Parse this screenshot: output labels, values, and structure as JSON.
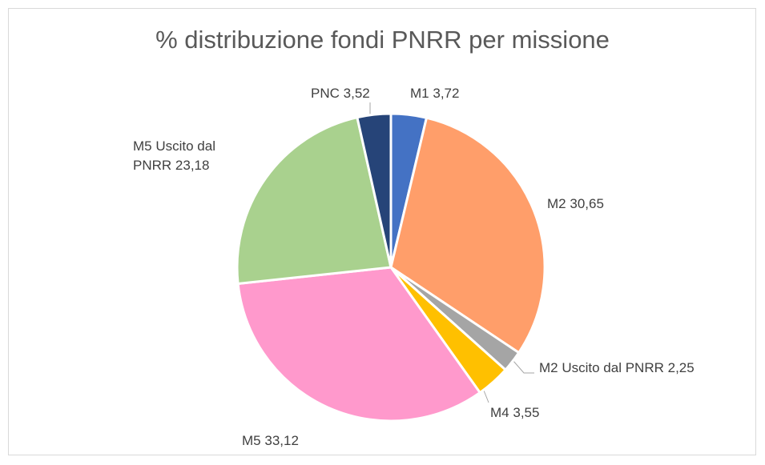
{
  "chart_data": {
    "type": "pie",
    "title": "% distribuzione fondi PNRR per missione",
    "categories": [
      "M1",
      "M2",
      "M2 Uscito dal PNRR",
      "M4",
      "M5",
      "M5 Uscito dal PNRR",
      "PNC"
    ],
    "values": [
      3.72,
      30.65,
      2.25,
      3.55,
      33.12,
      23.18,
      3.52
    ],
    "value_labels": [
      "3,72",
      "30,65",
      "2,25",
      "3,55",
      "33,12",
      "23,18",
      "3,52"
    ],
    "colors": [
      "#4472c4",
      "#ff9e6a",
      "#a5a5a5",
      "#ffc000",
      "#ff99cc",
      "#a9d18e",
      "#264478"
    ]
  }
}
